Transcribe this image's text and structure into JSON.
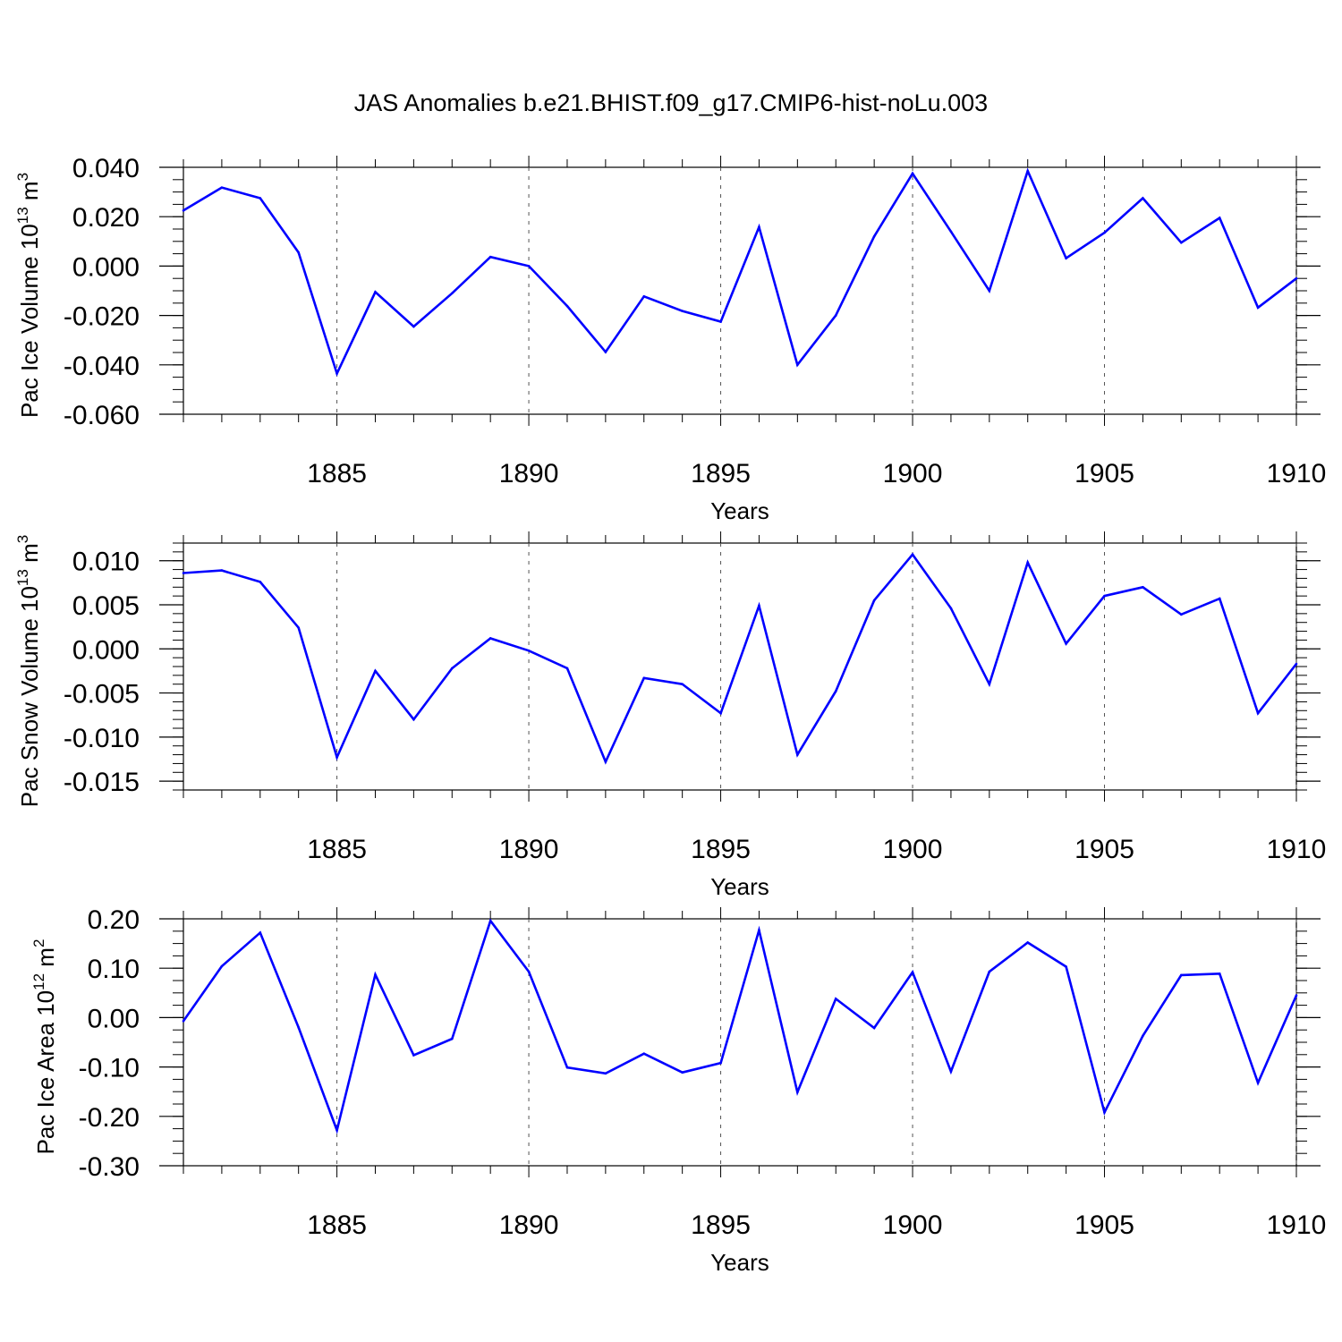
{
  "title": "JAS Anomalies b.e21.BHIST.f09_g17.CMIP6-hist-noLu.003",
  "chart_data": [
    {
      "type": "line",
      "ylabel_text": "Pac Ice Volume 10",
      "ylabel_exp": "13",
      "ylabel_unit": " m",
      "ylabel_unit_exp": "3",
      "xlabel": "Years",
      "xlim": [
        1881,
        1910
      ],
      "ylim": [
        -0.06,
        0.04
      ],
      "yticks": [
        -0.06,
        -0.04,
        -0.02,
        0.0,
        0.02,
        0.04
      ],
      "ytick_labels": [
        "-0.060",
        "-0.040",
        "-0.020",
        "0.000",
        "0.020",
        "0.040"
      ],
      "yminor_step": 0.005,
      "xticks": [
        1885,
        1890,
        1895,
        1900,
        1905,
        1910
      ],
      "xtick_labels": [
        "1885",
        "1890",
        "1895",
        "1900",
        "1905",
        "1910"
      ],
      "color": "#0000ff",
      "x": [
        1881,
        1882,
        1883,
        1884,
        1885,
        1886,
        1887,
        1888,
        1889,
        1890,
        1891,
        1892,
        1893,
        1894,
        1895,
        1896,
        1897,
        1898,
        1899,
        1900,
        1901,
        1902,
        1903,
        1904,
        1905,
        1906,
        1907,
        1908,
        1909,
        1910
      ],
      "values": [
        0.0225,
        0.0318,
        0.0275,
        0.0055,
        -0.0435,
        -0.0105,
        -0.0245,
        -0.011,
        0.0037,
        0.0,
        -0.0162,
        -0.0348,
        -0.0123,
        -0.0182,
        -0.0225,
        0.0158,
        -0.04,
        -0.02,
        0.012,
        0.0375,
        0.014,
        -0.01,
        0.0385,
        0.0032,
        0.0135,
        0.0275,
        0.0095,
        0.0195,
        -0.0168,
        -0.005
      ]
    },
    {
      "type": "line",
      "ylabel_text": "Pac Snow Volume 10",
      "ylabel_exp": "13",
      "ylabel_unit": " m",
      "ylabel_unit_exp": "3",
      "xlabel": "Years",
      "xlim": [
        1881,
        1910
      ],
      "ylim": [
        -0.016,
        0.012
      ],
      "yticks": [
        -0.015,
        -0.01,
        -0.005,
        0.0,
        0.005,
        0.01
      ],
      "ytick_labels": [
        "-0.015",
        "-0.010",
        "-0.005",
        "0.000",
        "0.005",
        "0.010"
      ],
      "yminor_step": 0.001,
      "xticks": [
        1885,
        1890,
        1895,
        1900,
        1905,
        1910
      ],
      "xtick_labels": [
        "1885",
        "1890",
        "1895",
        "1900",
        "1905",
        "1910"
      ],
      "color": "#0000ff",
      "x": [
        1881,
        1882,
        1883,
        1884,
        1885,
        1886,
        1887,
        1888,
        1889,
        1890,
        1891,
        1892,
        1893,
        1894,
        1895,
        1896,
        1897,
        1898,
        1899,
        1900,
        1901,
        1902,
        1903,
        1904,
        1905,
        1906,
        1907,
        1908,
        1909,
        1910
      ],
      "values": [
        0.0086,
        0.0089,
        0.0076,
        0.0024,
        -0.0123,
        -0.0025,
        -0.008,
        -0.0022,
        0.0012,
        -0.0002,
        -0.0022,
        -0.0128,
        -0.0033,
        -0.004,
        -0.0073,
        0.0049,
        -0.012,
        -0.0048,
        0.0055,
        0.0107,
        0.0046,
        -0.004,
        0.0098,
        0.0006,
        0.006,
        0.007,
        0.0039,
        0.0057,
        -0.0073,
        -0.0017
      ]
    },
    {
      "type": "line",
      "ylabel_text": "Pac Ice Area 10",
      "ylabel_exp": "12",
      "ylabel_unit": " m",
      "ylabel_unit_exp": "2",
      "xlabel": "Years",
      "xlim": [
        1881,
        1910
      ],
      "ylim": [
        -0.3,
        0.2
      ],
      "yticks": [
        -0.3,
        -0.2,
        -0.1,
        0.0,
        0.1,
        0.2
      ],
      "ytick_labels": [
        "-0.30",
        "-0.20",
        "-0.10",
        "0.00",
        "0.10",
        "0.20"
      ],
      "yminor_step": 0.025,
      "xticks": [
        1885,
        1890,
        1895,
        1900,
        1905,
        1910
      ],
      "xtick_labels": [
        "1885",
        "1890",
        "1895",
        "1900",
        "1905",
        "1910"
      ],
      "color": "#0000ff",
      "x": [
        1881,
        1882,
        1883,
        1884,
        1885,
        1886,
        1887,
        1888,
        1889,
        1890,
        1891,
        1892,
        1893,
        1894,
        1895,
        1896,
        1897,
        1898,
        1899,
        1900,
        1901,
        1902,
        1903,
        1904,
        1905,
        1906,
        1907,
        1908,
        1909,
        1910
      ],
      "values": [
        -0.007,
        0.104,
        0.172,
        -0.02,
        -0.228,
        0.087,
        -0.076,
        -0.043,
        0.196,
        0.093,
        -0.101,
        -0.113,
        -0.073,
        -0.111,
        -0.092,
        0.177,
        -0.151,
        0.038,
        -0.021,
        0.092,
        -0.109,
        0.093,
        0.152,
        0.103,
        -0.192,
        -0.037,
        0.086,
        0.089,
        -0.132,
        0.045
      ]
    }
  ]
}
